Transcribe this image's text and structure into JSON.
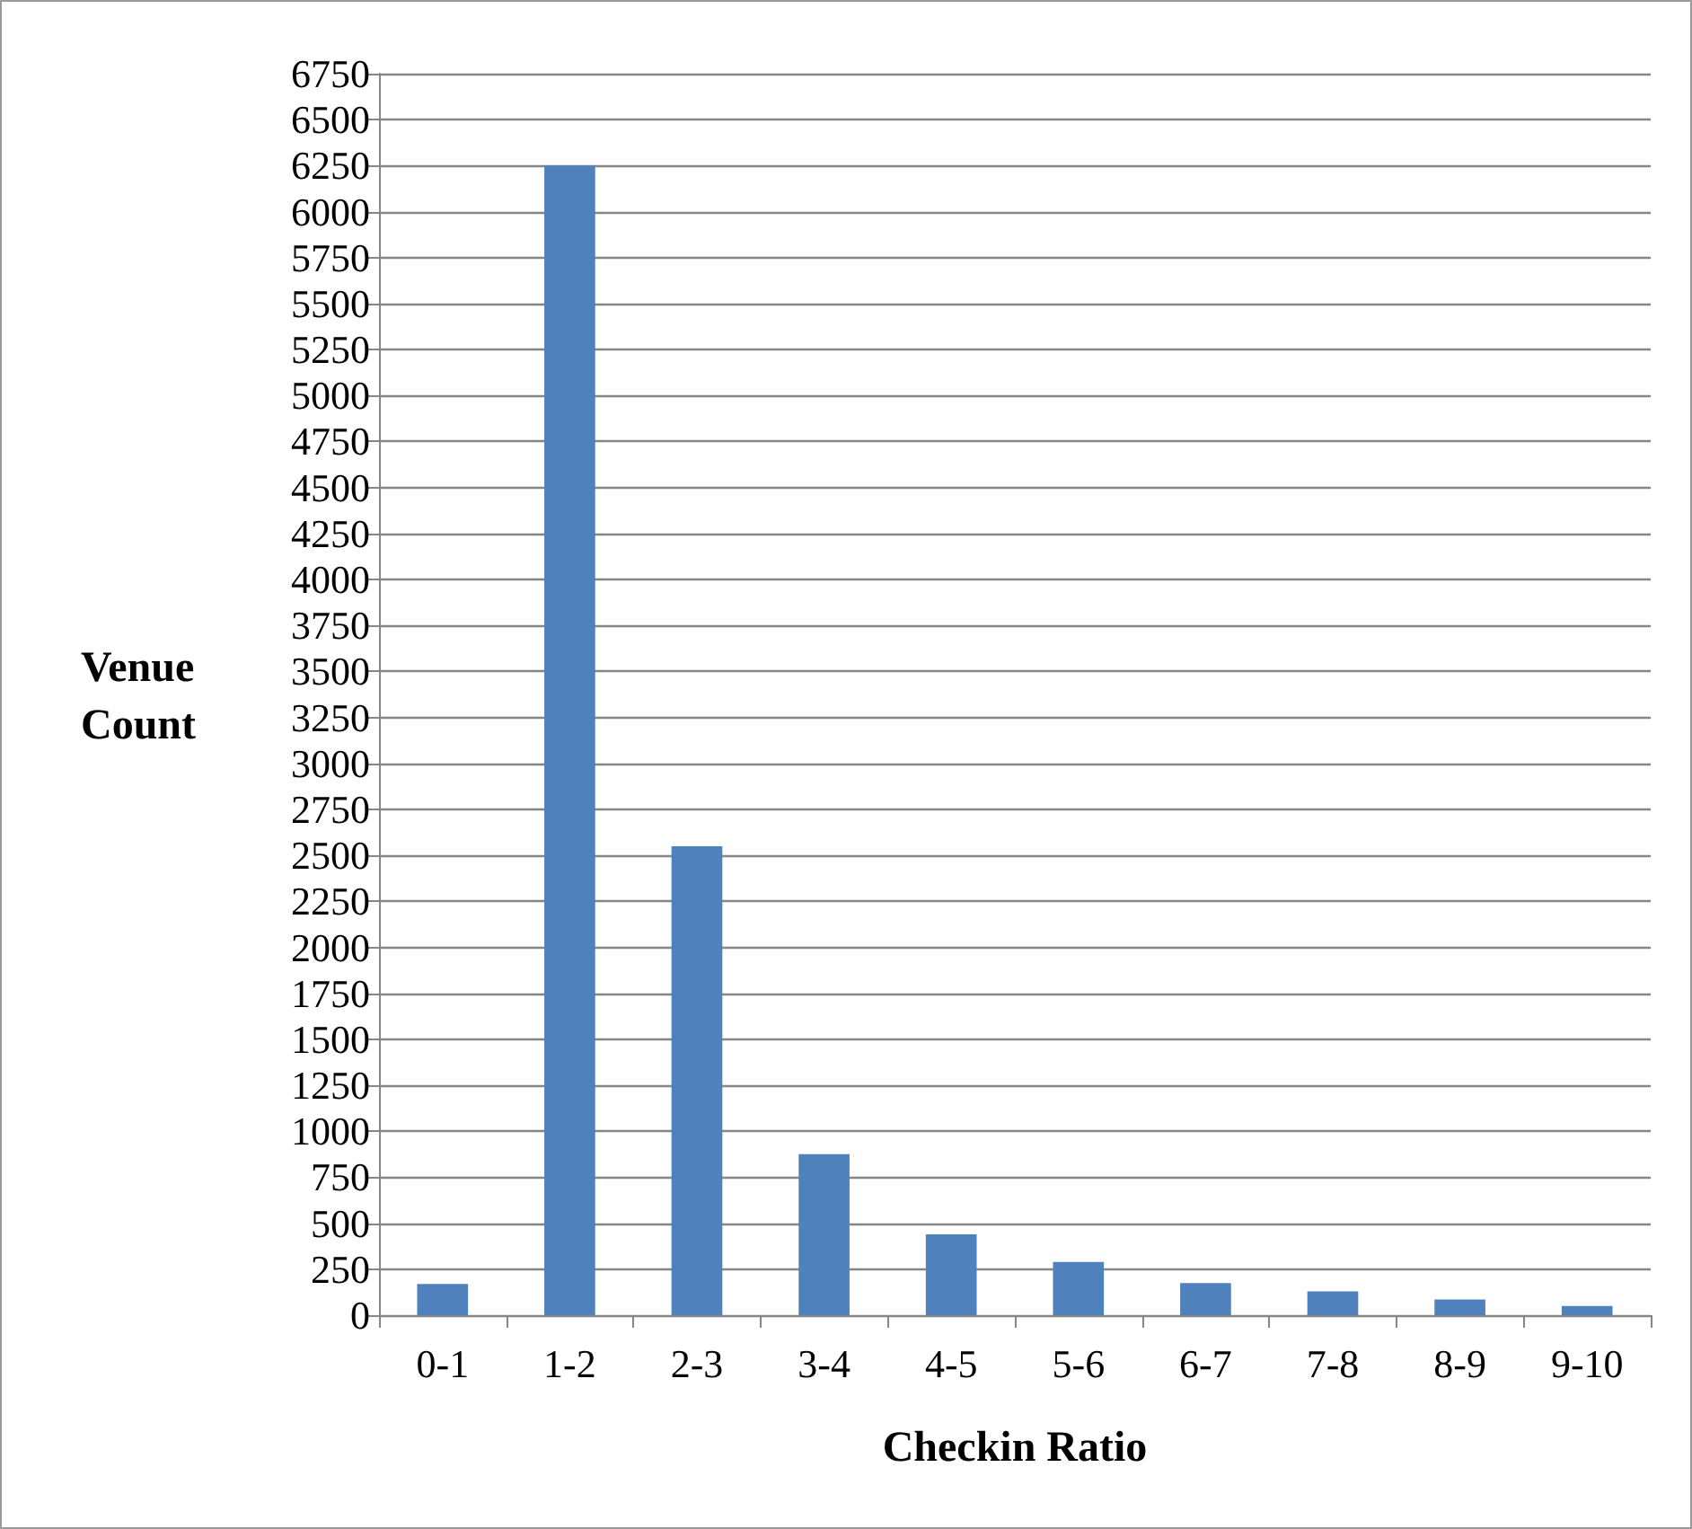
{
  "chart_data": {
    "type": "bar",
    "xlabel": "Checkin Ratio",
    "ylabel": "Venue\nCount",
    "categories": [
      "0-1",
      "1-2",
      "2-3",
      "3-4",
      "4-5",
      "5-6",
      "6-7",
      "7-8",
      "8-9",
      "9-10"
    ],
    "values": [
      170,
      6250,
      2550,
      875,
      440,
      290,
      175,
      130,
      85,
      50
    ],
    "color": "#4f81bd",
    "ylim": [
      0,
      6750
    ],
    "yticks": [
      0,
      250,
      500,
      750,
      1000,
      1250,
      1500,
      1750,
      2000,
      2250,
      2500,
      2750,
      3000,
      3250,
      3500,
      3750,
      4000,
      4250,
      4500,
      4750,
      5000,
      5250,
      5500,
      5750,
      6000,
      6250,
      6500,
      6750
    ],
    "grid": "y"
  }
}
